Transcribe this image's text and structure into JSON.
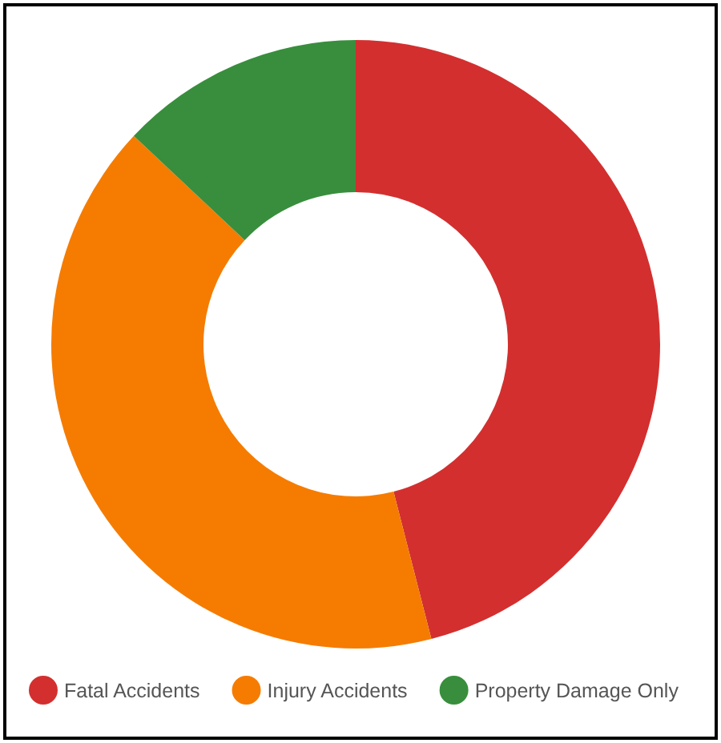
{
  "chart_data": {
    "type": "donut",
    "categories": [
      "Fatal Accidents",
      "Injury Accidents",
      "Property Damage Only"
    ],
    "values": [
      46,
      41,
      13
    ],
    "colors": [
      "#d32f2f",
      "#f57c00",
      "#388e3c"
    ],
    "legend": "bottom"
  }
}
